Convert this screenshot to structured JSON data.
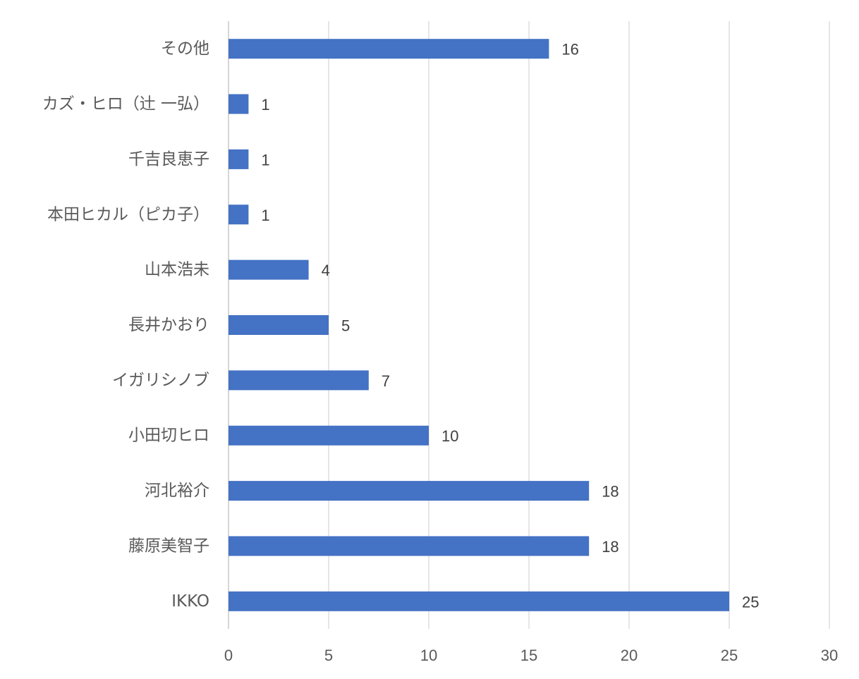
{
  "chart_data": {
    "type": "bar",
    "orientation": "horizontal",
    "categories": [
      "IKKO",
      "藤原美智子",
      "河北裕介",
      "小田切ヒロ",
      "イガリシノブ",
      "長井かおり",
      "山本浩未",
      "本田ヒカル（ピカ子）",
      "千吉良恵子",
      "カズ・ヒロ（辻 一弘）",
      "その他"
    ],
    "values": [
      25,
      18,
      18,
      10,
      7,
      5,
      4,
      1,
      1,
      1,
      16
    ],
    "xlim": [
      0,
      30
    ],
    "xticks": [
      0,
      5,
      10,
      15,
      20,
      25,
      30
    ],
    "grid": true,
    "data_labels": true,
    "bar_color": "#4472C4"
  }
}
